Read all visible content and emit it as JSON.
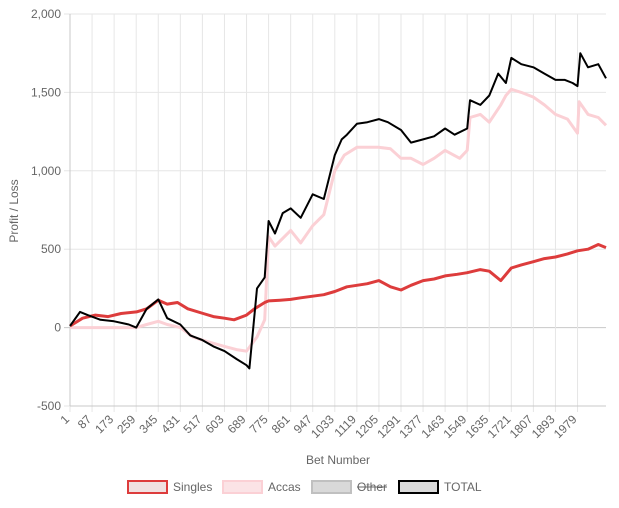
{
  "chart_data": {
    "type": "line",
    "title": "",
    "xlabel": "Bet Number",
    "ylabel": "Profit / Loss",
    "ylim": [
      -500,
      2000
    ],
    "xlim": [
      1,
      2090
    ],
    "y_ticks": [
      -500,
      0,
      500,
      1000,
      1500,
      2000
    ],
    "y_tick_labels": [
      "-500",
      "0",
      "500",
      "1,000",
      "1,500",
      "2,000"
    ],
    "x_ticks": [
      1,
      87,
      173,
      259,
      345,
      431,
      517,
      603,
      689,
      775,
      861,
      947,
      1033,
      1119,
      1205,
      1291,
      1377,
      1463,
      1549,
      1635,
      1721,
      1807,
      1893,
      1979
    ],
    "grid": true,
    "legend_position": "bottom",
    "series": [
      {
        "name": "Singles",
        "color": "#dd3c3c",
        "fill": "#f0e1e1",
        "hidden": false,
        "x": [
          1,
          50,
          100,
          150,
          200,
          260,
          300,
          345,
          380,
          420,
          460,
          520,
          560,
          603,
          640,
          689,
          720,
          760,
          775,
          820,
          861,
          900,
          947,
          990,
          1033,
          1080,
          1119,
          1160,
          1205,
          1250,
          1291,
          1330,
          1377,
          1420,
          1463,
          1510,
          1549,
          1600,
          1635,
          1680,
          1721,
          1760,
          1807,
          1850,
          1893,
          1940,
          1979,
          2020,
          2060,
          2090
        ],
        "values": [
          10,
          60,
          80,
          70,
          90,
          100,
          120,
          175,
          150,
          160,
          120,
          90,
          70,
          60,
          50,
          80,
          120,
          160,
          170,
          175,
          180,
          190,
          200,
          210,
          230,
          260,
          270,
          280,
          300,
          260,
          240,
          270,
          300,
          310,
          330,
          340,
          350,
          370,
          360,
          300,
          380,
          400,
          420,
          440,
          450,
          470,
          490,
          500,
          530,
          510
        ]
      },
      {
        "name": "Accas",
        "color": "#fbd0d5",
        "fill": "#fbe3e6",
        "hidden": false,
        "x": [
          1,
          50,
          100,
          150,
          200,
          259,
          300,
          345,
          380,
          431,
          480,
          517,
          560,
          603,
          650,
          689,
          730,
          760,
          775,
          800,
          861,
          900,
          947,
          990,
          1033,
          1070,
          1119,
          1160,
          1205,
          1250,
          1291,
          1330,
          1377,
          1420,
          1463,
          1520,
          1549,
          1560,
          1600,
          1635,
          1680,
          1700,
          1721,
          1760,
          1807,
          1850,
          1893,
          1940,
          1979,
          1985,
          2020,
          2060,
          2090
        ],
        "values": [
          0,
          0,
          0,
          0,
          0,
          0,
          20,
          40,
          20,
          0,
          -60,
          -80,
          -100,
          -120,
          -140,
          -150,
          -60,
          50,
          580,
          520,
          620,
          540,
          650,
          720,
          1000,
          1100,
          1150,
          1150,
          1150,
          1140,
          1080,
          1080,
          1040,
          1080,
          1130,
          1080,
          1130,
          1340,
          1360,
          1310,
          1420,
          1480,
          1520,
          1500,
          1470,
          1420,
          1360,
          1330,
          1240,
          1440,
          1360,
          1340,
          1290
        ]
      },
      {
        "name": "Other",
        "color": "#c0c0c0",
        "fill": "#d9d9d9",
        "hidden": true,
        "x": [
          1,
          2090
        ],
        "values": [
          0,
          0
        ]
      },
      {
        "name": "TOTAL",
        "color": "#000000",
        "fill": "#d9d9d9",
        "hidden": false,
        "x": [
          1,
          40,
          70,
          120,
          173,
          230,
          259,
          300,
          345,
          380,
          431,
          470,
          517,
          560,
          603,
          650,
          689,
          700,
          730,
          760,
          775,
          800,
          830,
          861,
          900,
          947,
          990,
          1033,
          1060,
          1080,
          1119,
          1160,
          1205,
          1240,
          1291,
          1330,
          1377,
          1420,
          1463,
          1500,
          1549,
          1560,
          1600,
          1635,
          1670,
          1700,
          1721,
          1760,
          1807,
          1850,
          1893,
          1930,
          1960,
          1979,
          1990,
          2020,
          2060,
          2090
        ],
        "values": [
          10,
          100,
          80,
          50,
          40,
          20,
          0,
          120,
          180,
          60,
          20,
          -50,
          -80,
          -120,
          -150,
          -200,
          -240,
          -260,
          250,
          320,
          680,
          600,
          730,
          760,
          700,
          850,
          820,
          1100,
          1200,
          1230,
          1300,
          1310,
          1330,
          1310,
          1260,
          1180,
          1200,
          1220,
          1270,
          1230,
          1270,
          1450,
          1420,
          1480,
          1620,
          1560,
          1720,
          1680,
          1660,
          1620,
          1580,
          1580,
          1560,
          1540,
          1750,
          1660,
          1680,
          1590
        ]
      }
    ]
  }
}
